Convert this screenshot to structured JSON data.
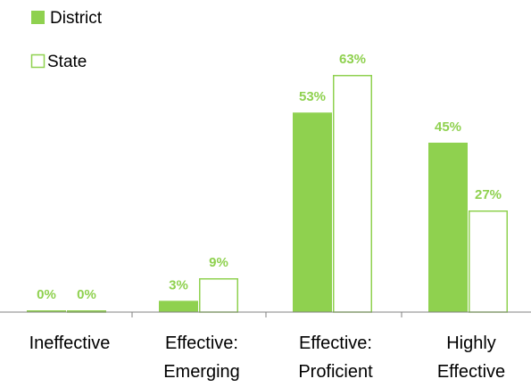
{
  "colors": {
    "accent": "#8fd14f",
    "axis": "#808080",
    "text": "#000000"
  },
  "legend": {
    "items": [
      {
        "name": "District"
      },
      {
        "name": "State"
      }
    ]
  },
  "chart_data": {
    "type": "bar",
    "categories": [
      [
        "Ineffective"
      ],
      [
        "Effective:",
        "Emerging"
      ],
      [
        "Effective:",
        "Proficient"
      ],
      [
        "Highly",
        "Effective"
      ]
    ],
    "series": [
      {
        "name": "District",
        "style": "filled",
        "values": [
          0,
          3,
          53,
          45
        ],
        "labels": [
          "0%",
          "3%",
          "53%",
          "45%"
        ]
      },
      {
        "name": "State",
        "style": "outline",
        "values": [
          0,
          9,
          63,
          27
        ],
        "labels": [
          "0%",
          "9%",
          "63%",
          "27%"
        ]
      }
    ],
    "ylim": [
      0,
      63
    ],
    "legend_position": "top-left",
    "grid": false
  }
}
